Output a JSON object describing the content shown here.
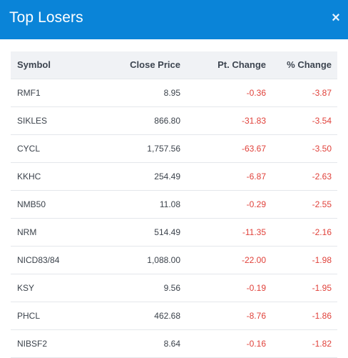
{
  "dialog": {
    "title": "Top Losers",
    "close_label": "×"
  },
  "table": {
    "headers": {
      "symbol": "Symbol",
      "close_price": "Close Price",
      "pt_change": "Pt. Change",
      "pct_change": "% Change"
    },
    "rows": [
      {
        "symbol": "RMF1",
        "close_price": "8.95",
        "pt_change": "-0.36",
        "pct_change": "-3.87"
      },
      {
        "symbol": "SIKLES",
        "close_price": "866.80",
        "pt_change": "-31.83",
        "pct_change": "-3.54"
      },
      {
        "symbol": "CYCL",
        "close_price": "1,757.56",
        "pt_change": "-63.67",
        "pct_change": "-3.50"
      },
      {
        "symbol": "KKHC",
        "close_price": "254.49",
        "pt_change": "-6.87",
        "pct_change": "-2.63"
      },
      {
        "symbol": "NMB50",
        "close_price": "11.08",
        "pt_change": "-0.29",
        "pct_change": "-2.55"
      },
      {
        "symbol": "NRM",
        "close_price": "514.49",
        "pt_change": "-11.35",
        "pct_change": "-2.16"
      },
      {
        "symbol": "NICD83/84",
        "close_price": "1,088.00",
        "pt_change": "-22.00",
        "pct_change": "-1.98"
      },
      {
        "symbol": "KSY",
        "close_price": "9.56",
        "pt_change": "-0.19",
        "pct_change": "-1.95"
      },
      {
        "symbol": "PHCL",
        "close_price": "462.68",
        "pt_change": "-8.76",
        "pct_change": "-1.86"
      },
      {
        "symbol": "NIBSF2",
        "close_price": "8.64",
        "pt_change": "-0.16",
        "pct_change": "-1.82"
      }
    ]
  },
  "colors": {
    "header_bg": "#0a84d8",
    "negative": "#e0413a",
    "table_header_bg": "#f0f2f5"
  },
  "icons": {
    "close": "close-icon"
  }
}
